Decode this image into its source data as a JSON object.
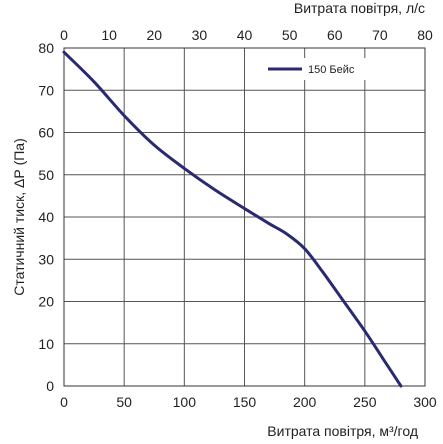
{
  "chart_data": {
    "type": "line",
    "xlabel": "Витрата повітря, м³/год",
    "x2label": "Витрата повітря, л/с",
    "ylabel": "Статичний тиск, ΔР (Па)",
    "xlim": [
      0,
      300
    ],
    "x2lim": [
      0,
      80
    ],
    "ylim": [
      0,
      80
    ],
    "xticks": [
      0,
      50,
      100,
      150,
      200,
      250,
      300
    ],
    "x2ticks": [
      0,
      10,
      20,
      30,
      40,
      50,
      60,
      70,
      80
    ],
    "yticks": [
      0,
      10,
      20,
      30,
      40,
      50,
      60,
      70,
      80
    ],
    "grid": true,
    "legend_position": "top-right",
    "line_color": "#2a2a72",
    "series": [
      {
        "name": "150 Бейс",
        "x": [
          0,
          25,
          50,
          75,
          100,
          125,
          150,
          170,
          185,
          200,
          215,
          230,
          250,
          265,
          280
        ],
        "y": [
          79,
          72,
          64,
          57,
          51.5,
          46.5,
          42,
          38.5,
          36,
          32.5,
          27,
          21,
          13,
          6.5,
          0
        ]
      }
    ]
  }
}
